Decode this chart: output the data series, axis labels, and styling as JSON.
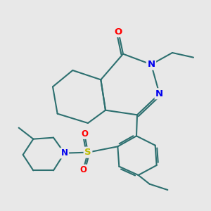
{
  "bg_color": "#e8e8e8",
  "bond_color": "#2d7070",
  "bond_width": 1.5,
  "atom_colors": {
    "O": "#ff0000",
    "N": "#0000ee",
    "S": "#bbbb00",
    "C": "#000000"
  },
  "font_size": 8.5,
  "fig_size": [
    3.0,
    3.0
  ],
  "dpi": 100
}
